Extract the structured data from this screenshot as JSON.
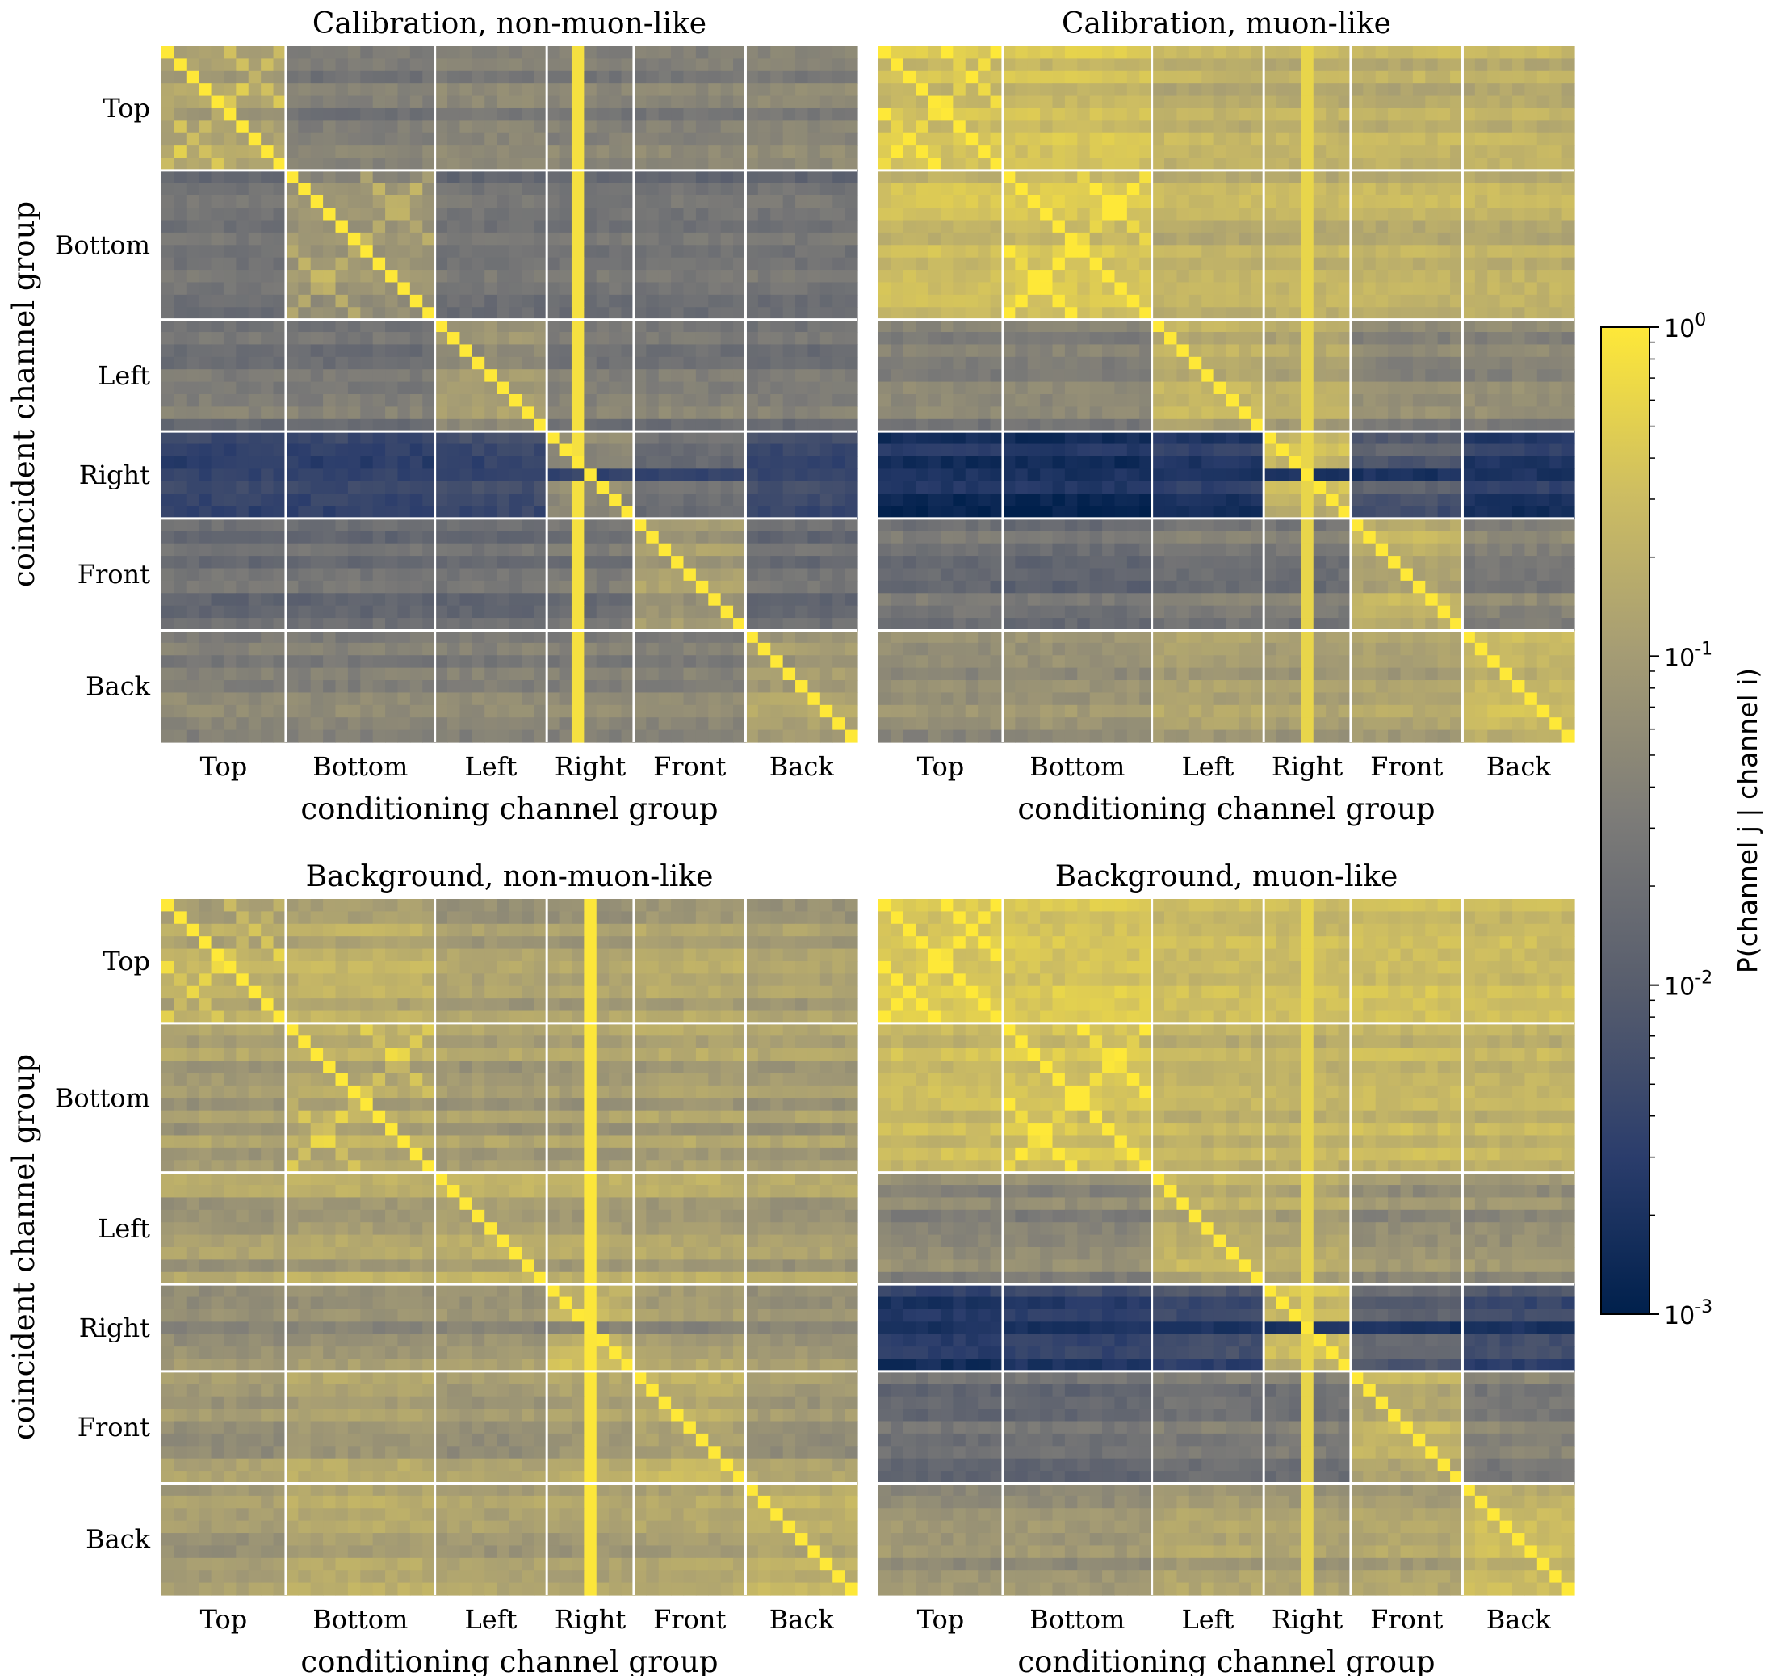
{
  "chart_data": {
    "type": "heatmap",
    "groups": [
      {
        "name": "Top",
        "channels": 10
      },
      {
        "name": "Bottom",
        "channels": 12
      },
      {
        "name": "Left",
        "channels": 9
      },
      {
        "name": "Right",
        "channels": 7
      },
      {
        "name": "Front",
        "channels": 9
      },
      {
        "name": "Back",
        "channels": 9
      }
    ],
    "colorbar": {
      "label": "P(channel j | channel i)",
      "scale": "log",
      "range": [
        0.001,
        1
      ],
      "ticks": [
        "10^0",
        "10^-1",
        "10^-2",
        "10^-3"
      ],
      "tick_values": [
        1,
        0.1,
        0.01,
        0.001
      ],
      "colormap": [
        "#00204c",
        "#2b3d6c",
        "#575d6d",
        "#7c7b78",
        "#a59c74",
        "#cdbd62",
        "#fee838"
      ]
    },
    "panels": [
      {
        "title": "Calibration, non-muon-like",
        "xlabel": "conditioning channel group",
        "ylabel": "coincident channel group",
        "diagonal": 1.0,
        "block_levels": [
          [
            0.12,
            0.035,
            0.045,
            0.04,
            0.04,
            0.045
          ],
          [
            0.025,
            0.08,
            0.025,
            0.025,
            0.025,
            0.025
          ],
          [
            0.03,
            0.03,
            0.09,
            0.035,
            0.035,
            0.03
          ],
          [
            0.004,
            0.004,
            0.005,
            0.05,
            0.02,
            0.005
          ],
          [
            0.02,
            0.02,
            0.02,
            0.025,
            0.1,
            0.02
          ],
          [
            0.045,
            0.045,
            0.045,
            0.045,
            0.045,
            0.12
          ]
        ],
        "bright_column": {
          "group": "Right",
          "index": 2,
          "value": 0.8
        },
        "dark_row": {
          "group": "Right",
          "index": 3,
          "value": 0.004
        }
      },
      {
        "title": "Calibration, muon-like",
        "xlabel": "conditioning channel group",
        "ylabel": "",
        "diagonal": 1.0,
        "block_levels": [
          [
            0.35,
            0.35,
            0.22,
            0.22,
            0.22,
            0.22
          ],
          [
            0.28,
            0.35,
            0.2,
            0.2,
            0.2,
            0.2
          ],
          [
            0.04,
            0.04,
            0.2,
            0.15,
            0.05,
            0.05
          ],
          [
            0.002,
            0.002,
            0.003,
            0.3,
            0.01,
            0.003
          ],
          [
            0.025,
            0.02,
            0.03,
            0.03,
            0.2,
            0.04
          ],
          [
            0.06,
            0.07,
            0.12,
            0.1,
            0.12,
            0.25
          ]
        ],
        "bright_column": {
          "group": "Right",
          "index": 3,
          "value": 0.6
        },
        "dark_row": {
          "group": "Right",
          "index": 3,
          "value": 0.002
        }
      },
      {
        "title": "Background, non-muon-like",
        "xlabel": "conditioning channel group",
        "ylabel": "coincident channel group",
        "diagonal": 1.0,
        "block_levels": [
          [
            0.18,
            0.2,
            0.12,
            0.12,
            0.15,
            0.12
          ],
          [
            0.12,
            0.18,
            0.12,
            0.12,
            0.14,
            0.12
          ],
          [
            0.12,
            0.15,
            0.18,
            0.15,
            0.15,
            0.12
          ],
          [
            0.07,
            0.08,
            0.09,
            0.25,
            0.12,
            0.08
          ],
          [
            0.1,
            0.14,
            0.1,
            0.14,
            0.2,
            0.1
          ],
          [
            0.1,
            0.16,
            0.12,
            0.12,
            0.14,
            0.2
          ]
        ],
        "bright_column": {
          "group": "Right",
          "index": 3,
          "value": 0.95
        },
        "dark_row": {
          "group": "Right",
          "index": 3,
          "value": 0.04
        }
      },
      {
        "title": "Background, muon-like",
        "xlabel": "conditioning channel group",
        "ylabel": "",
        "diagonal": 1.0,
        "block_levels": [
          [
            0.35,
            0.35,
            0.25,
            0.25,
            0.28,
            0.25
          ],
          [
            0.28,
            0.35,
            0.22,
            0.22,
            0.25,
            0.22
          ],
          [
            0.05,
            0.05,
            0.2,
            0.15,
            0.07,
            0.07
          ],
          [
            0.003,
            0.004,
            0.006,
            0.3,
            0.015,
            0.006
          ],
          [
            0.02,
            0.02,
            0.03,
            0.03,
            0.2,
            0.04
          ],
          [
            0.07,
            0.07,
            0.12,
            0.1,
            0.12,
            0.25
          ]
        ],
        "bright_column": {
          "group": "Right",
          "index": 3,
          "value": 0.6
        },
        "dark_row": {
          "group": "Right",
          "index": 3,
          "value": 0.002
        }
      }
    ]
  }
}
